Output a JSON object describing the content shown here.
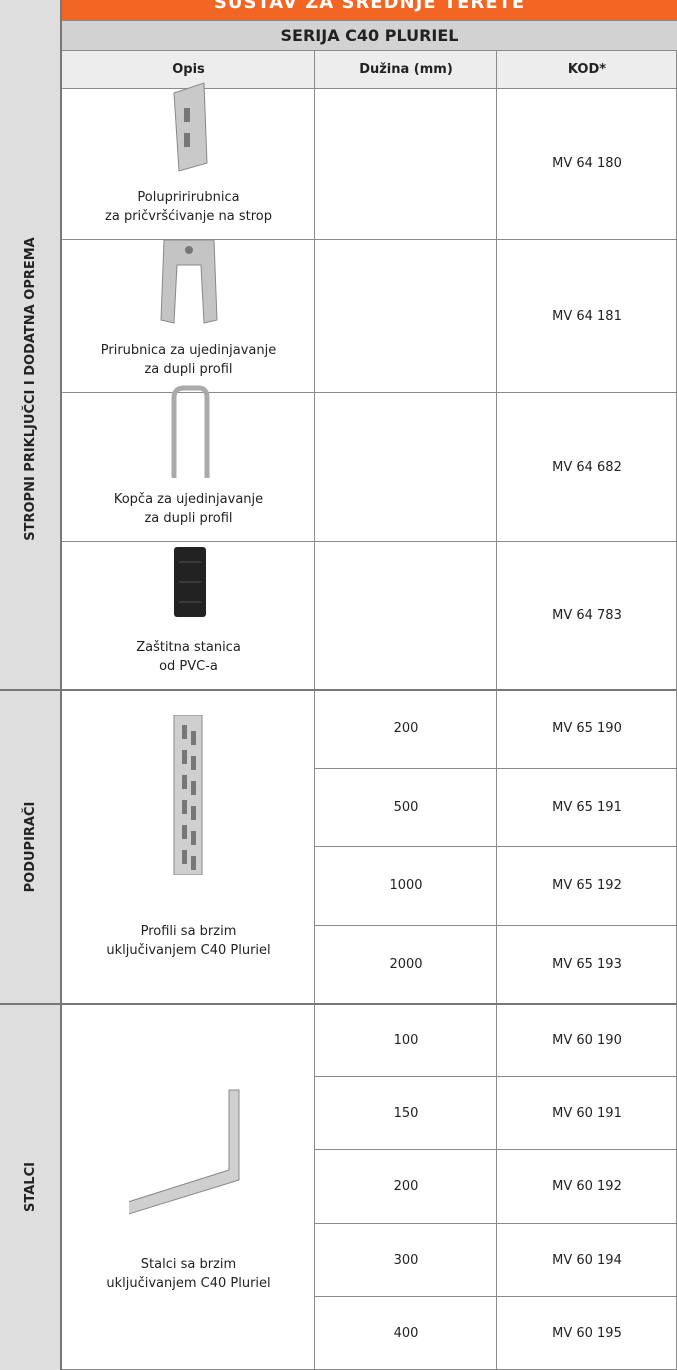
{
  "header": {
    "banner": "SUSTAV ZA SREDNJE TERETE",
    "series": "SERIJA C40 PLURIEL",
    "columns": [
      "Opis",
      "Dužina (mm)",
      "KOD*"
    ]
  },
  "sections": [
    {
      "label": "STROPNI PRIKLJUČCI I DODATNA OPREMA",
      "items": [
        {
          "description": [
            "Polupririrubnica",
            "za pričvršćivanje na strop"
          ],
          "code": "MV 64 180"
        },
        {
          "description": [
            "Prirubnica za ujedinjavanje",
            "za dupli profil"
          ],
          "code": "MV 64 181"
        },
        {
          "description": [
            "Kopča za ujedinjavanje",
            "za dupli profil"
          ],
          "code": "MV 64 682"
        },
        {
          "description": [
            "Zaštitna stanica",
            "od PVC-a"
          ],
          "code": "MV 64 783"
        }
      ]
    },
    {
      "label": "PODUPIRAČI",
      "description": [
        "Profili sa brzim",
        "uključivanjem C40 Pluriel"
      ],
      "rows": [
        {
          "length": "200",
          "code": "MV 65 190"
        },
        {
          "length": "500",
          "code": "MV 65 191"
        },
        {
          "length": "1000",
          "code": "MV 65 192"
        },
        {
          "length": "2000",
          "code": "MV 65 193"
        }
      ]
    },
    {
      "label": "STALCI",
      "description": [
        "Stalci sa brzim",
        "uključivanjem C40 Pluriel"
      ],
      "rows": [
        {
          "length": "100",
          "code": "MV 60 190"
        },
        {
          "length": "150",
          "code": "MV 60 191"
        },
        {
          "length": "200",
          "code": "MV 60 192"
        },
        {
          "length": "300",
          "code": "MV 60 194"
        },
        {
          "length": "400",
          "code": "MV 60 195"
        }
      ]
    }
  ]
}
